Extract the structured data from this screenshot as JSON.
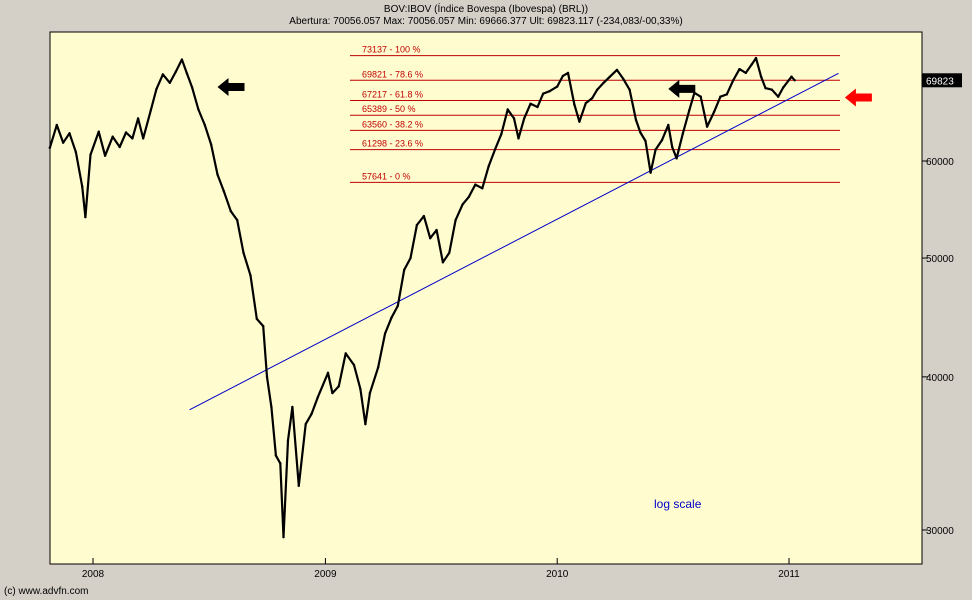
{
  "header": {
    "title": "BOV:IBOV (Índice Bovespa (Ibovespa) (BRL))",
    "stats": "Abertura: 70056.057 Max: 70056.057 Min: 69666.377 Ult: 69823.117 (-234,083/-00,33%)"
  },
  "copyright": "(c) www.advfn.com",
  "colors": {
    "plot_bg": "#fffdd0",
    "frame_bg": "#d4d0c8",
    "price": "#000000",
    "trendline": "#0000c8",
    "fib": "#c00000",
    "arrow_red": "#ff0000",
    "arrow_black": "#000000",
    "last_label_bg": "#000000"
  },
  "chart_data": {
    "type": "line",
    "y_scale": "log",
    "x_ticks": [
      "2008",
      "2009",
      "2010",
      "2011"
    ],
    "y_ticks": [
      30000,
      40000,
      50000,
      60000
    ],
    "last_value_label": "69823",
    "annotation": "log scale",
    "arrows": [
      {
        "color": "black",
        "direction": "left",
        "date": "2008-07-15",
        "value": 68950
      },
      {
        "color": "black",
        "direction": "left",
        "date": "2010-06-25",
        "value": 68700
      },
      {
        "color": "red",
        "direction": "left",
        "date": "2011-03-30",
        "value": 67600
      }
    ],
    "fib_levels": [
      {
        "label": "73137 - 100 %",
        "value": 73137
      },
      {
        "label": "69821 - 78.6 %",
        "value": 69821
      },
      {
        "label": "67217 - 61.8 %",
        "value": 67217
      },
      {
        "label": "65389 - 50 %",
        "value": 65389
      },
      {
        "label": "63560 - 38.2 %",
        "value": 63560
      },
      {
        "label": "61298 - 23.6 %",
        "value": 61298
      },
      {
        "label": "57641 - 0 %",
        "value": 57641
      }
    ],
    "trendline": [
      {
        "date": "2008-06-01",
        "value": 37600
      },
      {
        "date": "2011-03-20",
        "value": 70750
      }
    ],
    "series": [
      {
        "values": [
          [
            "2007-10-25",
            61500
          ],
          [
            "2007-11-05",
            64200
          ],
          [
            "2007-11-15",
            62100
          ],
          [
            "2007-11-25",
            63200
          ],
          [
            "2007-12-05",
            61000
          ],
          [
            "2007-12-15",
            57200
          ],
          [
            "2007-12-20",
            54000
          ],
          [
            "2007-12-28",
            60700
          ],
          [
            "2008-01-10",
            63400
          ],
          [
            "2008-01-20",
            60600
          ],
          [
            "2008-02-01",
            62800
          ],
          [
            "2008-02-12",
            61600
          ],
          [
            "2008-02-22",
            63300
          ],
          [
            "2008-03-03",
            62600
          ],
          [
            "2008-03-12",
            65000
          ],
          [
            "2008-03-20",
            62600
          ],
          [
            "2008-04-01",
            66000
          ],
          [
            "2008-04-10",
            68700
          ],
          [
            "2008-04-20",
            70600
          ],
          [
            "2008-05-01",
            69500
          ],
          [
            "2008-05-10",
            70900
          ],
          [
            "2008-05-20",
            72600
          ],
          [
            "2008-05-28",
            70700
          ],
          [
            "2008-06-05",
            68900
          ],
          [
            "2008-06-15",
            66100
          ],
          [
            "2008-06-25",
            64200
          ],
          [
            "2008-07-05",
            61900
          ],
          [
            "2008-07-15",
            58500
          ],
          [
            "2008-07-25",
            56700
          ],
          [
            "2008-08-05",
            54600
          ],
          [
            "2008-08-15",
            53700
          ],
          [
            "2008-08-25",
            50500
          ],
          [
            "2008-09-05",
            48400
          ],
          [
            "2008-09-15",
            44600
          ],
          [
            "2008-09-25",
            44000
          ],
          [
            "2008-10-01",
            40000
          ],
          [
            "2008-10-08",
            37800
          ],
          [
            "2008-10-15",
            34500
          ],
          [
            "2008-10-22",
            34000
          ],
          [
            "2008-10-27",
            29600
          ],
          [
            "2008-11-03",
            35500
          ],
          [
            "2008-11-10",
            37800
          ],
          [
            "2008-11-20",
            32600
          ],
          [
            "2008-12-01",
            36600
          ],
          [
            "2008-12-10",
            37300
          ],
          [
            "2008-12-20",
            38500
          ],
          [
            "2009-01-05",
            40300
          ],
          [
            "2009-01-12",
            38800
          ],
          [
            "2009-01-22",
            39300
          ],
          [
            "2009-02-02",
            41800
          ],
          [
            "2009-02-15",
            40900
          ],
          [
            "2009-02-25",
            39100
          ],
          [
            "2009-03-05",
            36600
          ],
          [
            "2009-03-12",
            38800
          ],
          [
            "2009-03-25",
            40700
          ],
          [
            "2009-04-05",
            43400
          ],
          [
            "2009-04-15",
            44700
          ],
          [
            "2009-04-25",
            45700
          ],
          [
            "2009-05-05",
            48900
          ],
          [
            "2009-05-15",
            50000
          ],
          [
            "2009-05-25",
            53200
          ],
          [
            "2009-06-05",
            54100
          ],
          [
            "2009-06-15",
            51900
          ],
          [
            "2009-06-25",
            52700
          ],
          [
            "2009-07-05",
            49600
          ],
          [
            "2009-07-15",
            50500
          ],
          [
            "2009-07-25",
            53700
          ],
          [
            "2009-08-05",
            55300
          ],
          [
            "2009-08-15",
            56100
          ],
          [
            "2009-08-25",
            57400
          ],
          [
            "2009-09-05",
            57000
          ],
          [
            "2009-09-15",
            59400
          ],
          [
            "2009-09-25",
            61300
          ],
          [
            "2009-10-05",
            63100
          ],
          [
            "2009-10-15",
            66100
          ],
          [
            "2009-10-25",
            65000
          ],
          [
            "2009-11-01",
            62600
          ],
          [
            "2009-11-10",
            65000
          ],
          [
            "2009-11-20",
            66800
          ],
          [
            "2009-12-01",
            66400
          ],
          [
            "2009-12-10",
            68100
          ],
          [
            "2009-12-20",
            68400
          ],
          [
            "2010-01-01",
            69000
          ],
          [
            "2010-01-10",
            70400
          ],
          [
            "2010-01-18",
            70800
          ],
          [
            "2010-01-28",
            66700
          ],
          [
            "2010-02-05",
            64600
          ],
          [
            "2010-02-15",
            66900
          ],
          [
            "2010-02-25",
            67500
          ],
          [
            "2010-03-05",
            68600
          ],
          [
            "2010-03-15",
            69500
          ],
          [
            "2010-03-25",
            70300
          ],
          [
            "2010-04-05",
            71200
          ],
          [
            "2010-04-15",
            70000
          ],
          [
            "2010-04-25",
            68600
          ],
          [
            "2010-05-05",
            64800
          ],
          [
            "2010-05-12",
            63300
          ],
          [
            "2010-05-20",
            62300
          ],
          [
            "2010-05-28",
            58700
          ],
          [
            "2010-06-05",
            61300
          ],
          [
            "2010-06-15",
            62400
          ],
          [
            "2010-06-25",
            64200
          ],
          [
            "2010-07-01",
            61600
          ],
          [
            "2010-07-08",
            60300
          ],
          [
            "2010-07-18",
            63200
          ],
          [
            "2010-07-28",
            66000
          ],
          [
            "2010-08-05",
            68200
          ],
          [
            "2010-08-15",
            67700
          ],
          [
            "2010-08-25",
            64000
          ],
          [
            "2010-09-05",
            65800
          ],
          [
            "2010-09-15",
            67700
          ],
          [
            "2010-09-25",
            68000
          ],
          [
            "2010-10-05",
            69800
          ],
          [
            "2010-10-15",
            71300
          ],
          [
            "2010-10-25",
            70800
          ],
          [
            "2010-11-03",
            71900
          ],
          [
            "2010-11-10",
            72800
          ],
          [
            "2010-11-18",
            70300
          ],
          [
            "2010-11-25",
            68800
          ],
          [
            "2010-12-05",
            68600
          ],
          [
            "2010-12-15",
            67700
          ],
          [
            "2010-12-23",
            68900
          ],
          [
            "2011-01-05",
            70300
          ],
          [
            "2011-01-10",
            69823
          ]
        ]
      }
    ]
  }
}
